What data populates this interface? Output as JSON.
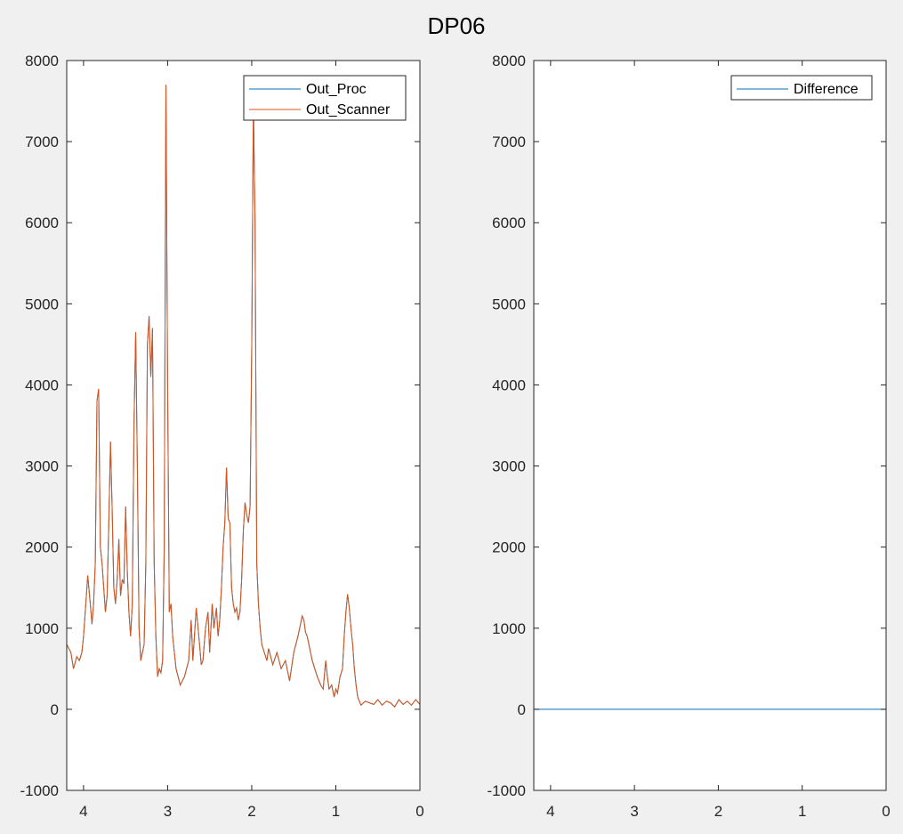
{
  "figure": {
    "title": "DP06"
  },
  "chart_data": [
    {
      "type": "line",
      "xlim": [
        4.2,
        0
      ],
      "ylim": [
        -1000,
        8000
      ],
      "x_reversed": true,
      "xticks": [
        4,
        3,
        2,
        1,
        0
      ],
      "xtick_labels": [
        "4",
        "3",
        "2",
        "1",
        "0"
      ],
      "yticks": [
        -1000,
        0,
        1000,
        2000,
        3000,
        4000,
        5000,
        6000,
        7000,
        8000
      ],
      "ytick_labels": [
        "-1000",
        "0",
        "1000",
        "2000",
        "3000",
        "4000",
        "5000",
        "6000",
        "7000",
        "8000"
      ],
      "grid": false,
      "legend_position": "top-right",
      "series": [
        {
          "name": "Out_Proc",
          "color": "#0072bd",
          "x": [
            4.2,
            4.15,
            4.12,
            4.08,
            4.05,
            4.02,
            4.0,
            3.98,
            3.95,
            3.92,
            3.9,
            3.88,
            3.86,
            3.84,
            3.82,
            3.8,
            3.78,
            3.76,
            3.74,
            3.72,
            3.7,
            3.68,
            3.66,
            3.64,
            3.62,
            3.6,
            3.58,
            3.56,
            3.54,
            3.52,
            3.5,
            3.48,
            3.46,
            3.44,
            3.42,
            3.4,
            3.38,
            3.36,
            3.34,
            3.32,
            3.3,
            3.28,
            3.26,
            3.24,
            3.22,
            3.2,
            3.18,
            3.16,
            3.14,
            3.12,
            3.1,
            3.08,
            3.06,
            3.04,
            3.02,
            3.0,
            2.98,
            2.96,
            2.94,
            2.92,
            2.9,
            2.85,
            2.8,
            2.75,
            2.72,
            2.7,
            2.66,
            2.62,
            2.6,
            2.58,
            2.55,
            2.52,
            2.5,
            2.47,
            2.45,
            2.42,
            2.4,
            2.38,
            2.36,
            2.34,
            2.32,
            2.3,
            2.28,
            2.26,
            2.24,
            2.22,
            2.2,
            2.18,
            2.16,
            2.14,
            2.12,
            2.1,
            2.08,
            2.06,
            2.04,
            2.02,
            2.0,
            1.98,
            1.96,
            1.94,
            1.92,
            1.9,
            1.88,
            1.85,
            1.82,
            1.8,
            1.75,
            1.7,
            1.65,
            1.6,
            1.55,
            1.5,
            1.45,
            1.42,
            1.4,
            1.38,
            1.36,
            1.34,
            1.32,
            1.3,
            1.28,
            1.25,
            1.22,
            1.2,
            1.18,
            1.15,
            1.12,
            1.1,
            1.08,
            1.05,
            1.02,
            1.0,
            0.98,
            0.95,
            0.92,
            0.9,
            0.88,
            0.86,
            0.84,
            0.82,
            0.8,
            0.78,
            0.76,
            0.74,
            0.72,
            0.7,
            0.65,
            0.6,
            0.55,
            0.5,
            0.45,
            0.4,
            0.35,
            0.3,
            0.25,
            0.2,
            0.15,
            0.1,
            0.05,
            0.0
          ],
          "y": [
            800,
            700,
            500,
            650,
            600,
            700,
            900,
            1200,
            1650,
            1300,
            1050,
            1300,
            1800,
            3800,
            3950,
            2000,
            1800,
            1500,
            1200,
            1400,
            2300,
            3300,
            2500,
            1500,
            1300,
            1600,
            2100,
            1400,
            1600,
            1550,
            2500,
            1700,
            1200,
            900,
            1300,
            3500,
            4650,
            3000,
            1000,
            600,
            700,
            800,
            1800,
            4500,
            4850,
            4100,
            4700,
            1800,
            900,
            400,
            500,
            450,
            600,
            2000,
            7700,
            4000,
            1200,
            1300,
            900,
            700,
            500,
            300,
            400,
            600,
            1100,
            600,
            1250,
            800,
            550,
            600,
            1000,
            1200,
            700,
            1300,
            1000,
            1250,
            900,
            1100,
            1500,
            2000,
            2300,
            2980,
            2350,
            2300,
            1500,
            1300,
            1200,
            1250,
            1100,
            1200,
            1600,
            2200,
            2550,
            2400,
            2300,
            2500,
            4500,
            7500,
            6000,
            1800,
            1300,
            1000,
            800,
            700,
            600,
            750,
            550,
            700,
            500,
            600,
            350,
            700,
            900,
            1050,
            1150,
            1100,
            950,
            900,
            800,
            700,
            600,
            500,
            400,
            350,
            300,
            250,
            600,
            400,
            250,
            300,
            150,
            250,
            200,
            400,
            500,
            900,
            1200,
            1420,
            1250,
            1000,
            800,
            500,
            300,
            150,
            100,
            50,
            100,
            80,
            60,
            120,
            50,
            100,
            80,
            30,
            120,
            60,
            100,
            50,
            120,
            60
          ],
          "visible_note": "",
          "hidden_under": "Out_Scanner"
        },
        {
          "name": "Out_Scanner",
          "color": "#d95319",
          "x": [
            4.2,
            4.15,
            4.12,
            4.08,
            4.05,
            4.02,
            4.0,
            3.98,
            3.95,
            3.92,
            3.9,
            3.88,
            3.86,
            3.84,
            3.82,
            3.8,
            3.78,
            3.76,
            3.74,
            3.72,
            3.7,
            3.68,
            3.66,
            3.64,
            3.62,
            3.6,
            3.58,
            3.56,
            3.54,
            3.52,
            3.5,
            3.48,
            3.46,
            3.44,
            3.42,
            3.4,
            3.38,
            3.36,
            3.34,
            3.32,
            3.3,
            3.28,
            3.26,
            3.24,
            3.22,
            3.2,
            3.18,
            3.16,
            3.14,
            3.12,
            3.1,
            3.08,
            3.06,
            3.04,
            3.02,
            3.0,
            2.98,
            2.96,
            2.94,
            2.92,
            2.9,
            2.85,
            2.8,
            2.75,
            2.72,
            2.7,
            2.66,
            2.62,
            2.6,
            2.58,
            2.55,
            2.52,
            2.5,
            2.47,
            2.45,
            2.42,
            2.4,
            2.38,
            2.36,
            2.34,
            2.32,
            2.3,
            2.28,
            2.26,
            2.24,
            2.22,
            2.2,
            2.18,
            2.16,
            2.14,
            2.12,
            2.1,
            2.08,
            2.06,
            2.04,
            2.02,
            2.0,
            1.98,
            1.96,
            1.94,
            1.92,
            1.9,
            1.88,
            1.85,
            1.82,
            1.8,
            1.75,
            1.7,
            1.65,
            1.6,
            1.55,
            1.5,
            1.45,
            1.42,
            1.4,
            1.38,
            1.36,
            1.34,
            1.32,
            1.3,
            1.28,
            1.25,
            1.22,
            1.2,
            1.18,
            1.15,
            1.12,
            1.1,
            1.08,
            1.05,
            1.02,
            1.0,
            0.98,
            0.95,
            0.92,
            0.9,
            0.88,
            0.86,
            0.84,
            0.82,
            0.8,
            0.78,
            0.76,
            0.74,
            0.72,
            0.7,
            0.65,
            0.6,
            0.55,
            0.5,
            0.45,
            0.4,
            0.35,
            0.3,
            0.25,
            0.2,
            0.15,
            0.1,
            0.05,
            0.0
          ],
          "y": [
            800,
            700,
            500,
            650,
            600,
            700,
            900,
            1200,
            1650,
            1300,
            1050,
            1300,
            1800,
            3800,
            3950,
            2000,
            1800,
            1500,
            1200,
            1400,
            2300,
            3300,
            2500,
            1500,
            1300,
            1600,
            2100,
            1400,
            1600,
            1550,
            2500,
            1700,
            1200,
            900,
            1300,
            3500,
            4650,
            3000,
            1000,
            600,
            700,
            800,
            1800,
            4500,
            4850,
            4100,
            4700,
            1800,
            900,
            400,
            500,
            450,
            600,
            2000,
            7700,
            4000,
            1200,
            1300,
            900,
            700,
            500,
            300,
            400,
            600,
            1100,
            600,
            1250,
            800,
            550,
            600,
            1000,
            1200,
            700,
            1300,
            1000,
            1250,
            900,
            1100,
            1500,
            2000,
            2300,
            2980,
            2350,
            2300,
            1500,
            1300,
            1200,
            1250,
            1100,
            1200,
            1600,
            2200,
            2550,
            2400,
            2300,
            2500,
            4500,
            7500,
            6000,
            1800,
            1300,
            1000,
            800,
            700,
            600,
            750,
            550,
            700,
            500,
            600,
            350,
            700,
            900,
            1050,
            1150,
            1100,
            950,
            900,
            800,
            700,
            600,
            500,
            400,
            350,
            300,
            250,
            600,
            400,
            250,
            300,
            150,
            250,
            200,
            400,
            500,
            900,
            1200,
            1420,
            1250,
            1000,
            800,
            500,
            300,
            150,
            100,
            50,
            100,
            80,
            60,
            120,
            50,
            100,
            80,
            30,
            120,
            60,
            100,
            50,
            120,
            60
          ]
        }
      ]
    },
    {
      "type": "line",
      "xlim": [
        4.2,
        0
      ],
      "ylim": [
        -1000,
        8000
      ],
      "x_reversed": true,
      "xticks": [
        4,
        3,
        2,
        1,
        0
      ],
      "xtick_labels": [
        "4",
        "3",
        "2",
        "1",
        "0"
      ],
      "yticks": [
        -1000,
        0,
        1000,
        2000,
        3000,
        4000,
        5000,
        6000,
        7000,
        8000
      ],
      "ytick_labels": [
        "-1000",
        "0",
        "1000",
        "2000",
        "3000",
        "4000",
        "5000",
        "6000",
        "7000",
        "8000"
      ],
      "grid": false,
      "legend_position": "top-right",
      "series": [
        {
          "name": "Difference",
          "color": "#0072bd",
          "x": [
            4.2,
            0.0
          ],
          "y": [
            0,
            0
          ]
        }
      ]
    }
  ]
}
